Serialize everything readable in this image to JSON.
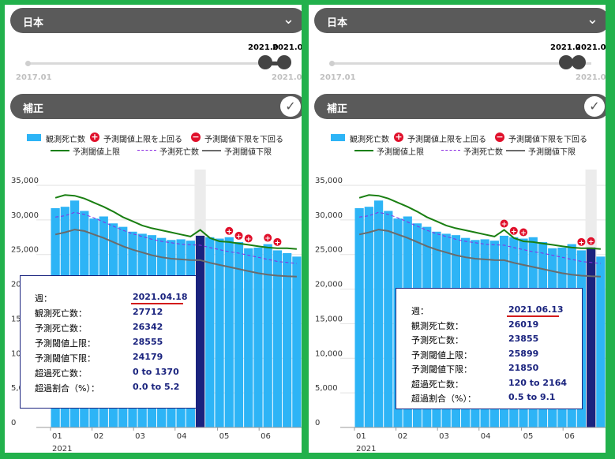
{
  "panels": [
    {
      "country": "日本",
      "slider": {
        "start": "2017.01",
        "end": "2021.06",
        "handle_left": "2021.0",
        "handle_right": "2021.06"
      },
      "correction_label": "補正",
      "legend": {
        "observed": "観測死亡数",
        "above": "予測閾値上限を上回る",
        "below": "予測閾値下限を下回る",
        "upper": "予測閾値上限",
        "predicted": "予測死亡数",
        "lower": "予測閾値下限"
      },
      "tooltip": {
        "rows": [
          {
            "label": "週：",
            "value": "2021.04.18"
          },
          {
            "label": "観測死亡数：",
            "value": "27712"
          },
          {
            "label": "予測死亡数：",
            "value": "26342"
          },
          {
            "label": "予測閾値上限：",
            "value": "28555"
          },
          {
            "label": "予測閾値下限：",
            "value": "24179"
          },
          {
            "label": "超過死亡数：",
            "value": "0 to 1370"
          },
          {
            "label": "超過割合（%）：",
            "value": "0.0 to 5.2"
          }
        ]
      }
    },
    {
      "country": "日本",
      "slider": {
        "start": "2017.01",
        "end": "2021.06",
        "handle_left": "2021.0",
        "handle_right": "2021.06"
      },
      "correction_label": "補正",
      "legend": {
        "observed": "観測死亡数",
        "above": "予測閾値上限を上回る",
        "below": "予測閾値下限を下回る",
        "upper": "予測閾値上限",
        "predicted": "予測死亡数",
        "lower": "予測閾値下限"
      },
      "tooltip": {
        "rows": [
          {
            "label": "週：",
            "value": "2021.06.13"
          },
          {
            "label": "観測死亡数：",
            "value": "26019"
          },
          {
            "label": "予測死亡数：",
            "value": "23855"
          },
          {
            "label": "予測閾値上限：",
            "value": "25899"
          },
          {
            "label": "予測閾値下限：",
            "value": "21850"
          },
          {
            "label": "超過死亡数：",
            "value": "120 to 2164"
          },
          {
            "label": "超過割合（%）：",
            "value": "0.5 to 9.1"
          }
        ]
      }
    }
  ],
  "chart_data": [
    {
      "type": "bar",
      "year_label": "2021",
      "month_labels": [
        "01",
        "02",
        "03",
        "04",
        "05",
        "06"
      ],
      "y_ticks": [
        "35,000",
        "30,000",
        "25,000",
        "20,000",
        "15,000",
        "10,000",
        "5,000",
        "0"
      ],
      "ylim": [
        0,
        35000
      ],
      "highlight_index": 15,
      "weekly": {
        "observed": [
          31700,
          31900,
          32800,
          31300,
          30200,
          30500,
          29500,
          29000,
          28300,
          28000,
          27800,
          27400,
          27100,
          27200,
          27000,
          27712,
          27500,
          27300,
          27500,
          26800,
          25900,
          26000,
          26500,
          25600,
          25200,
          24700
        ],
        "upper": [
          33200,
          33600,
          33500,
          33100,
          32500,
          31900,
          31200,
          30400,
          29800,
          29200,
          28800,
          28500,
          28200,
          27900,
          27600,
          28555,
          27400,
          26900,
          26800,
          26600,
          26400,
          26200,
          26000,
          25900,
          25899,
          25800
        ],
        "predicted": [
          30400,
          30600,
          31100,
          30800,
          30300,
          29700,
          29100,
          28500,
          28000,
          27600,
          27200,
          26900,
          26700,
          26500,
          26400,
          26342,
          26000,
          25700,
          25400,
          25200,
          24900,
          24600,
          24300,
          24000,
          23855,
          23700
        ],
        "lower": [
          27900,
          28200,
          28600,
          28400,
          27900,
          27400,
          26800,
          26200,
          25700,
          25300,
          24900,
          24600,
          24400,
          24300,
          24200,
          24179,
          23800,
          23500,
          23200,
          22900,
          22600,
          22300,
          22100,
          21950,
          21850,
          21800
        ]
      },
      "above_flags": [
        18,
        19,
        20,
        22,
        23
      ],
      "y_label": ""
    },
    {
      "type": "bar",
      "year_label": "2021",
      "month_labels": [
        "01",
        "02",
        "03",
        "04",
        "05",
        "06"
      ],
      "y_ticks": [
        "35,000",
        "30,000",
        "25,000",
        "20,000",
        "15,000",
        "10,000",
        "5,000",
        "0"
      ],
      "ylim": [
        0,
        35000
      ],
      "highlight_index": 24,
      "weekly": {
        "observed": [
          31700,
          31900,
          32800,
          31300,
          30200,
          30500,
          29500,
          29000,
          28300,
          28000,
          27800,
          27400,
          27100,
          27200,
          27000,
          27712,
          27500,
          27300,
          27500,
          26800,
          25900,
          26000,
          26500,
          25600,
          26019,
          24700
        ],
        "upper": [
          33200,
          33600,
          33500,
          33100,
          32500,
          31900,
          31200,
          30400,
          29800,
          29200,
          28800,
          28500,
          28200,
          27900,
          27600,
          28555,
          27400,
          26900,
          26800,
          26600,
          26400,
          26200,
          26000,
          25900,
          25899,
          25800
        ],
        "predicted": [
          30400,
          30600,
          31100,
          30800,
          30300,
          29700,
          29100,
          28500,
          28000,
          27600,
          27200,
          26900,
          26700,
          26500,
          26400,
          26342,
          26000,
          25700,
          25400,
          25200,
          24900,
          24600,
          24300,
          24000,
          23855,
          23700
        ],
        "lower": [
          27900,
          28200,
          28600,
          28400,
          27900,
          27400,
          26800,
          26200,
          25700,
          25300,
          24900,
          24600,
          24400,
          24300,
          24200,
          24179,
          23800,
          23500,
          23200,
          22900,
          22600,
          22300,
          22100,
          21950,
          21850,
          21800
        ]
      },
      "above_flags": [
        15,
        16,
        17,
        23,
        24
      ],
      "y_label": ""
    }
  ],
  "colors": {
    "bar": "#2db4f6",
    "bar_highlight": "#1a237e",
    "upper": "#1a7f12",
    "predicted": "#8a2be2",
    "lower": "#6b6b6b",
    "flag": "#e0102b",
    "frame": "#22b14c"
  }
}
